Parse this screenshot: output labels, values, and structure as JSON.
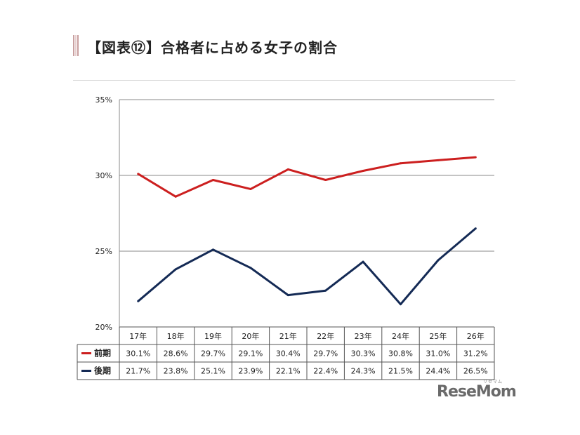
{
  "title": "【図表⑫】合格者に占める女子の割合",
  "logo": {
    "text": "ReseMom",
    "sub": "リセマム"
  },
  "colors": {
    "series1": "#cc1f1f",
    "series2": "#142a55",
    "grid": "#8a8a8a",
    "text": "#222222"
  },
  "chart_data": {
    "type": "line",
    "categories": [
      "17年",
      "18年",
      "19年",
      "20年",
      "21年",
      "22年",
      "23年",
      "24年",
      "25年",
      "26年"
    ],
    "series": [
      {
        "name": "前期",
        "values": [
          30.1,
          28.6,
          29.7,
          29.1,
          30.4,
          29.7,
          30.3,
          30.8,
          31.0,
          31.2
        ],
        "labels": [
          "30.1%",
          "28.6%",
          "29.7%",
          "29.1%",
          "30.4%",
          "29.7%",
          "30.3%",
          "30.8%",
          "31.0%",
          "31.2%"
        ]
      },
      {
        "name": "後期",
        "values": [
          21.7,
          23.8,
          25.1,
          23.9,
          22.1,
          22.4,
          24.3,
          21.5,
          24.4,
          26.5
        ],
        "labels": [
          "21.7%",
          "23.8%",
          "25.1%",
          "23.9%",
          "22.1%",
          "22.4%",
          "24.3%",
          "21.5%",
          "24.4%",
          "26.5%"
        ]
      }
    ],
    "ylim": [
      20,
      35
    ],
    "yticks": [
      20,
      25,
      30,
      35
    ],
    "ytick_labels": [
      "20%",
      "25%",
      "30%",
      "35%"
    ],
    "grid": true,
    "legend": "data-table"
  }
}
